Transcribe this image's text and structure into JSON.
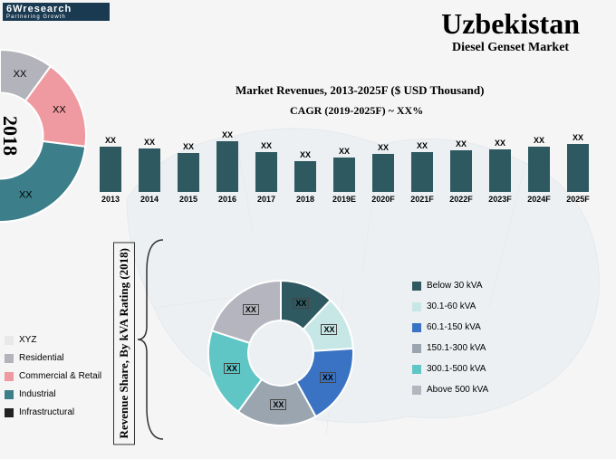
{
  "logo": {
    "main": "6Wresearch",
    "sub": "Partnering Growth"
  },
  "title": {
    "country": "Uzbekistan",
    "market": "Diesel Genset Market"
  },
  "subtitle": "Market Revenues, 2013-2025F ($ USD Thousand)",
  "cagr": "CAGR (2019-2025F) ~ XX%",
  "barchart": {
    "bar_color": "#2e5960",
    "value_label": "XX",
    "years": [
      "2013",
      "2014",
      "2015",
      "2016",
      "2017",
      "2018",
      "2019E",
      "2020F",
      "2021F",
      "2022F",
      "2023F",
      "2024F",
      "2025F"
    ],
    "heights": [
      50,
      48,
      43,
      56,
      44,
      34,
      38,
      42,
      44,
      46,
      47,
      50,
      53
    ]
  },
  "year_label": "2018",
  "left_donut": {
    "segments": [
      {
        "label": "XX",
        "color": "#b3b3bb",
        "value": 10
      },
      {
        "label": "XX",
        "color": "#ef9aa0",
        "value": 17
      },
      {
        "label": "XX",
        "color": "#3c7f8a",
        "value": 33
      },
      {
        "label": "",
        "color": "#222222",
        "value": 15
      },
      {
        "label": "",
        "color": "#e8e8e8",
        "value": 25
      }
    ],
    "inner_ratio": 0.5
  },
  "left_legend": [
    {
      "label": "XYZ",
      "color": "#e8e8e8"
    },
    {
      "label": "Residential",
      "color": "#b3b3bb"
    },
    {
      "label": "Commercial & Retail",
      "color": "#ef9aa0"
    },
    {
      "label": "Industrial",
      "color": "#3c7f8a"
    },
    {
      "label": "Infrastructural",
      "color": "#222222"
    }
  ],
  "vertical_label": "Revenue Share, By kVA Rating (2018)",
  "center_donut": {
    "value_label": "XX",
    "segments": [
      {
        "color": "#2e5960",
        "value": 12
      },
      {
        "color": "#c7e7e7",
        "value": 12
      },
      {
        "color": "#3a72c4",
        "value": 18
      },
      {
        "color": "#9aa5b0",
        "value": 18
      },
      {
        "color": "#5fc5c5",
        "value": 20
      },
      {
        "color": "#b5b5bf",
        "value": 20
      }
    ],
    "inner_ratio": 0.45
  },
  "right_legend": [
    {
      "label": "Below 30 kVA",
      "color": "#2e5960"
    },
    {
      "label": "30.1-60 kVA",
      "color": "#c7e7e7"
    },
    {
      "label": "60.1-150 kVA",
      "color": "#3a72c4"
    },
    {
      "label": "150.1-300 kVA",
      "color": "#9aa5b0"
    },
    {
      "label": "300.1-500 kVA",
      "color": "#5fc5c5"
    },
    {
      "label": "Above 500 kVA",
      "color": "#b5b5bf"
    }
  ]
}
